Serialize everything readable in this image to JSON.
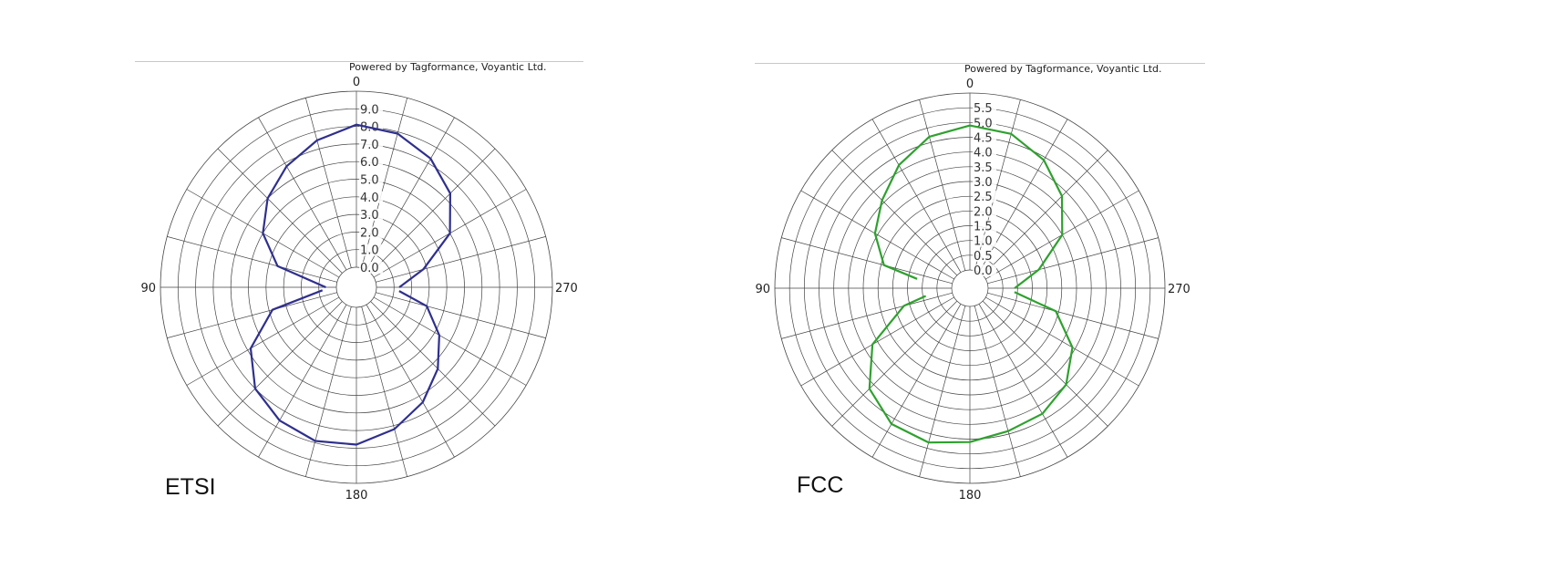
{
  "chart_data": [
    {
      "type": "polar-line",
      "title": "ETSI",
      "credit": "Powered by Tagformance, Voyantic Ltd.",
      "angle_labels": [
        "0",
        "90",
        "180",
        "270"
      ],
      "radial_ticks": [
        "0.0",
        "1.0",
        "2.0",
        "3.0",
        "4.0",
        "5.0",
        "6.0",
        "7.0",
        "8.0",
        "9.0"
      ],
      "rlim": [
        0,
        10
      ],
      "angular_gridlines_every_deg": 15,
      "grid": true,
      "series": [
        {
          "color": "#2f2f8f",
          "segments": [
            {
              "theta": [
                270,
                285,
                300,
                315,
                330,
                345,
                0,
                15,
                30,
                45,
                60,
                75,
                90
              ],
              "r": [
                1.3,
                2.8,
                5.0,
                6.4,
                7.3,
                7.9,
                8.1,
                7.5,
                6.8,
                6.0,
                5.0,
                3.5,
                0.6
              ]
            },
            {
              "theta": [
                95,
                105,
                120,
                135,
                150,
                165,
                180,
                195,
                210,
                225,
                240,
                255,
                265
              ],
              "r": [
                0.8,
                3.8,
                5.8,
                7.0,
                7.6,
                7.9,
                7.8,
                7.2,
                6.4,
                5.4,
                4.3,
                3.0,
                1.3
              ]
            }
          ]
        }
      ]
    },
    {
      "type": "polar-line",
      "title": "FCC",
      "credit": "Powered by Tagformance, Voyantic Ltd.",
      "angle_labels": [
        "0",
        "90",
        "180",
        "270"
      ],
      "radial_ticks": [
        "0.0",
        "0.5",
        "1.0",
        "1.5",
        "2.0",
        "2.5",
        "3.0",
        "3.5",
        "4.0",
        "4.5",
        "5.0",
        "5.5"
      ],
      "rlim": [
        0,
        6
      ],
      "angular_gridlines_every_deg": 15,
      "grid": true,
      "series": [
        {
          "color": "#2ea12e",
          "segments": [
            {
              "theta": [
                270,
                285,
                300,
                315,
                330,
                345,
                0,
                15,
                30,
                45,
                60,
                75,
                80
              ],
              "r": [
                0.9,
                1.8,
                3.0,
                3.8,
                4.4,
                4.8,
                4.9,
                4.7,
                4.2,
                3.6,
                3.1,
                2.4,
                1.2
              ]
            },
            {
              "theta": [
                100,
                105,
                120,
                135,
                150,
                165,
                180,
                195,
                210,
                225,
                240,
                255,
                265
              ],
              "r": [
                0.9,
                1.7,
                3.2,
                4.2,
                4.7,
                4.8,
                4.6,
                4.4,
                4.3,
                4.0,
                3.4,
                2.4,
                0.9
              ]
            }
          ]
        }
      ]
    }
  ]
}
